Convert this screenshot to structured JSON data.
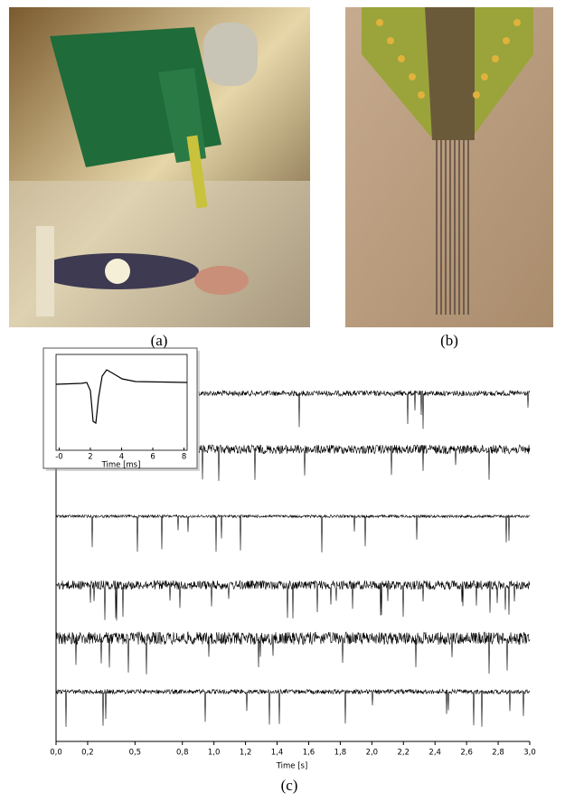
{
  "labels": {
    "a": "(a)",
    "b": "(b)",
    "c": "(c)"
  },
  "chart": {
    "xlabel": "Time [s]",
    "xlim": [
      0,
      3
    ],
    "xticks": [
      {
        "value": 0,
        "label": "0,0"
      },
      {
        "value": 0.2,
        "label": "0,2"
      },
      {
        "value": 0.5,
        "label": "0,5"
      },
      {
        "value": 0.8,
        "label": "0,8"
      },
      {
        "value": 1.0,
        "label": "1,0"
      },
      {
        "value": 1.2,
        "label": "1,2"
      },
      {
        "value": 1.4,
        "label": "1,4"
      },
      {
        "value": 1.6,
        "label": "1,6"
      },
      {
        "value": 1.8,
        "label": "1,8"
      },
      {
        "value": 2.0,
        "label": "2,0"
      },
      {
        "value": 2.2,
        "label": "2,2"
      },
      {
        "value": 2.4,
        "label": "2,4"
      },
      {
        "value": 2.6,
        "label": "2,6"
      },
      {
        "value": 2.8,
        "label": "2,8"
      },
      {
        "value": 3.0,
        "label": "3,0"
      }
    ],
    "inset": {
      "xlabel": "Time [ms]",
      "xlim": [
        -0.2,
        8.2
      ],
      "xticks": [
        {
          "value": 0,
          "label": "-0"
        },
        2,
        4,
        6,
        8
      ]
    }
  }
}
